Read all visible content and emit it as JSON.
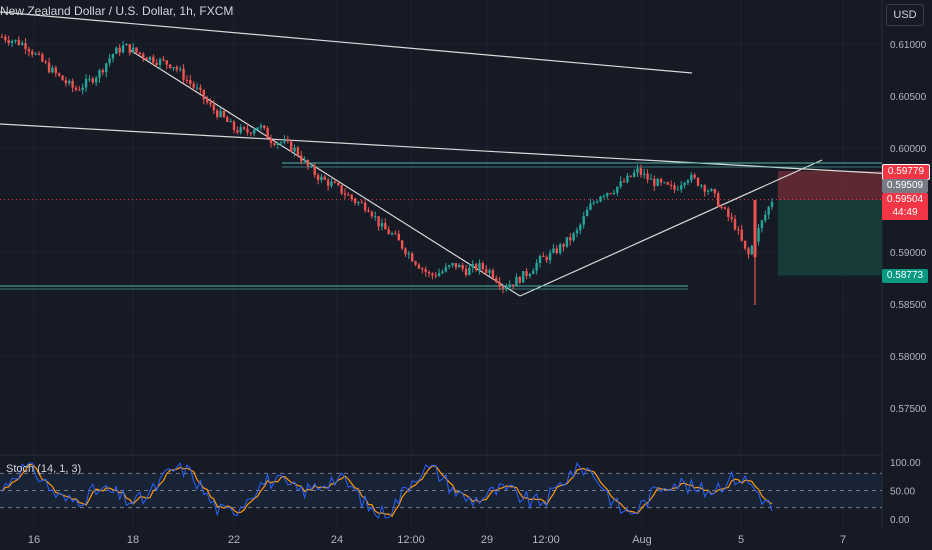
{
  "header": {
    "title": "New Zealand Dollar / U.S. Dollar, 1h, FXCM",
    "currency_button": "USD"
  },
  "price_axis": {
    "ticks": [
      "0.61000",
      "0.60500",
      "0.60000",
      "0.59000",
      "0.58500",
      "0.58000",
      "0.57500"
    ]
  },
  "price_tags": {
    "stop": "0.59779",
    "last": "0.59509",
    "current": "0.59504",
    "countdown": "44:49",
    "target": "0.58773"
  },
  "indicator": {
    "label": "Stoch (14, 1, 3)",
    "ticks": [
      "100.00",
      "50.00",
      "0.00"
    ],
    "levels": {
      "upper": 80,
      "middle": 50,
      "lower": 20
    }
  },
  "time_axis": {
    "ticks": [
      "16",
      "18",
      "22",
      "24",
      "12:00",
      "29",
      "12:00",
      "Aug",
      "5",
      "7"
    ]
  },
  "colors": {
    "background": "#161a25",
    "up_candle": "#26a69a",
    "down_candle": "#ef5350",
    "trendline": "#d9d9d9",
    "support": "#4db6ac",
    "stop_zone": "#6b2b35",
    "target_zone": "#163d3a",
    "stoch_k": "#2962ff",
    "stoch_d": "#ff9800"
  },
  "price_path": [
    0.6107,
    0.6103,
    0.6099,
    0.6086,
    0.6075,
    0.6065,
    0.6056,
    0.6063,
    0.6073,
    0.609,
    0.6098,
    0.6092,
    0.6087,
    0.6083,
    0.608,
    0.6067,
    0.6055,
    0.604,
    0.603,
    0.6018,
    0.6015,
    0.6022,
    0.6008,
    0.6005,
    0.5998,
    0.5982,
    0.5971,
    0.5965,
    0.5957,
    0.5948,
    0.5943,
    0.5924,
    0.5916,
    0.5902,
    0.5889,
    0.5877,
    0.5881,
    0.5888,
    0.5882,
    0.5886,
    0.5881,
    0.5867,
    0.5872,
    0.588,
    0.5892,
    0.5898,
    0.5908,
    0.5918,
    0.5942,
    0.5956,
    0.596,
    0.5968,
    0.5978,
    0.5969,
    0.5964,
    0.596,
    0.5973,
    0.5967,
    0.5958,
    0.594,
    0.5925,
    0.5895,
    0.5924,
    0.595
  ]
}
